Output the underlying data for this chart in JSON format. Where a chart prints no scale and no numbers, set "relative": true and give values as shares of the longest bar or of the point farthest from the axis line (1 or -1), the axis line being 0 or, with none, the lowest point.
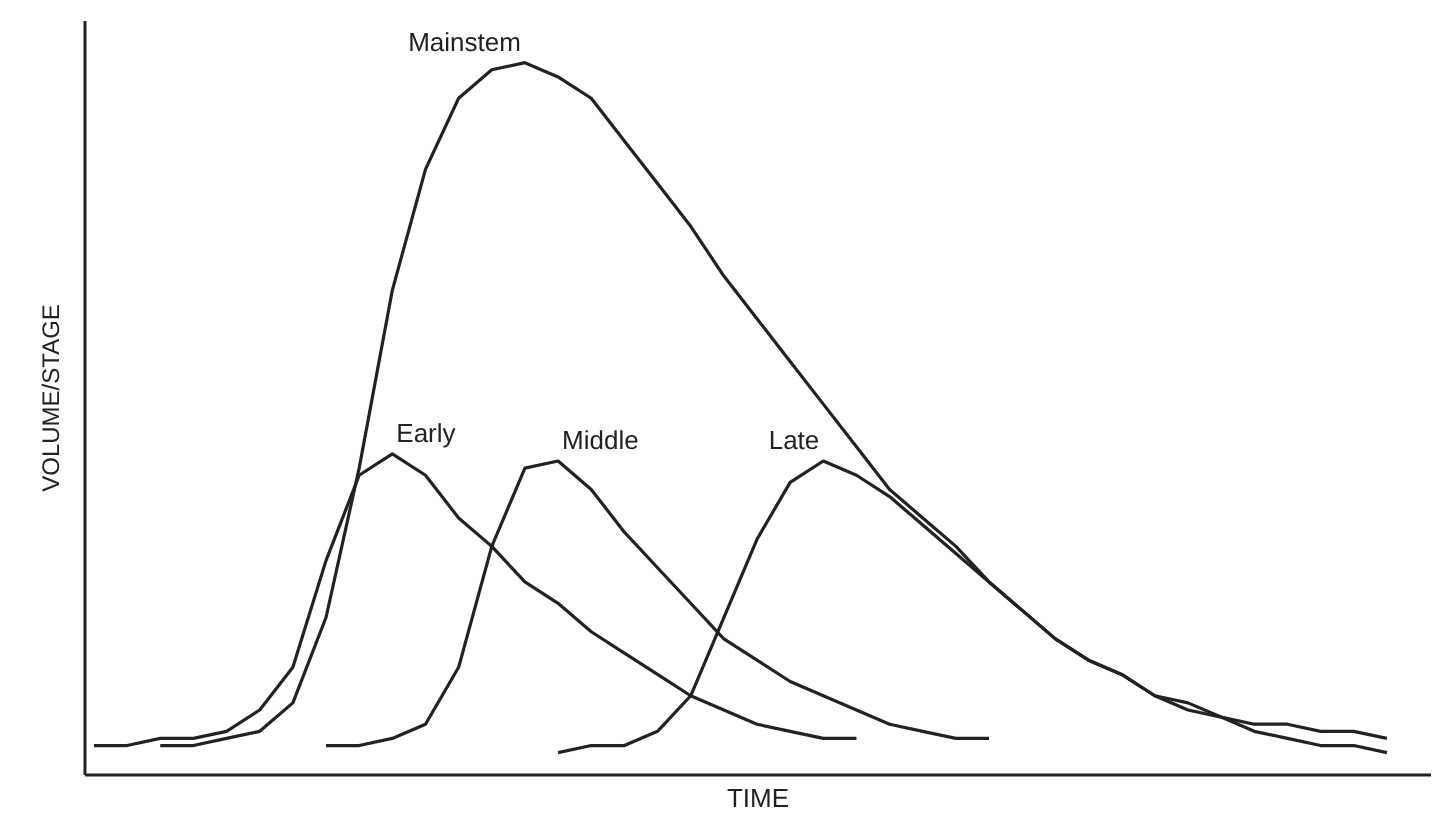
{
  "chart_data": {
    "type": "line",
    "relative": true,
    "xlabel": "TIME",
    "ylabel": "VOLUME/STAGE",
    "marker": "none",
    "line_style": "solid",
    "categories": [
      null,
      null,
      null,
      null,
      null,
      null,
      null,
      null,
      null,
      null,
      null,
      null,
      null,
      null,
      null,
      null,
      null,
      null,
      null,
      null,
      null,
      null,
      null,
      null,
      null,
      null,
      null,
      null,
      null,
      null,
      null,
      null,
      null,
      null,
      null,
      null,
      null,
      null,
      null,
      null,
      null
    ],
    "series": [
      {
        "name": "Mainstem",
        "color": "#222222",
        "values": [
          null,
          null,
          0.04,
          0.04,
          0.05,
          0.06,
          0.1,
          0.22,
          0.43,
          0.68,
          0.85,
          0.95,
          0.99,
          1,
          0.98,
          0.95,
          0.89,
          0.83,
          0.77,
          0.7,
          0.64,
          0.58,
          0.52,
          0.46,
          0.4,
          0.36,
          0.32,
          0.27,
          0.23,
          0.19,
          0.16,
          0.14,
          0.11,
          0.1,
          0.08,
          0.07,
          0.07,
          0.06,
          0.06,
          0.05,
          null
        ]
      },
      {
        "name": "Early",
        "color": "#222222",
        "values": [
          0.04,
          0.04,
          0.05,
          0.05,
          0.06,
          0.09,
          0.15,
          0.3,
          0.42,
          0.45,
          0.42,
          0.36,
          0.32,
          0.27,
          0.24,
          0.2,
          0.17,
          0.14,
          0.11,
          0.09,
          0.07,
          0.06,
          0.05,
          0.05,
          null,
          null,
          null,
          null,
          null,
          null,
          null,
          null,
          null,
          null,
          null,
          null,
          null,
          null,
          null,
          null,
          null
        ]
      },
      {
        "name": "Middle",
        "color": "#222222",
        "values": [
          null,
          null,
          null,
          null,
          null,
          null,
          null,
          0.04,
          0.04,
          0.05,
          0.07,
          0.15,
          0.32,
          0.43,
          0.44,
          0.4,
          0.34,
          0.29,
          0.24,
          0.19,
          0.16,
          0.13,
          0.11,
          0.09,
          0.07,
          0.06,
          0.05,
          0.05,
          null,
          null,
          null,
          null,
          null,
          null,
          null,
          null,
          null,
          null,
          null,
          null,
          null
        ]
      },
      {
        "name": "Late",
        "color": "#222222",
        "values": [
          null,
          null,
          null,
          null,
          null,
          null,
          null,
          null,
          null,
          null,
          null,
          null,
          null,
          null,
          0.03,
          0.04,
          0.04,
          0.06,
          0.11,
          0.22,
          0.33,
          0.41,
          0.44,
          0.42,
          0.39,
          0.35,
          0.31,
          0.27,
          0.23,
          0.19,
          0.16,
          0.14,
          0.11,
          0.09,
          0.08,
          0.06,
          0.05,
          0.04,
          0.04,
          0.03,
          null
        ]
      }
    ]
  }
}
